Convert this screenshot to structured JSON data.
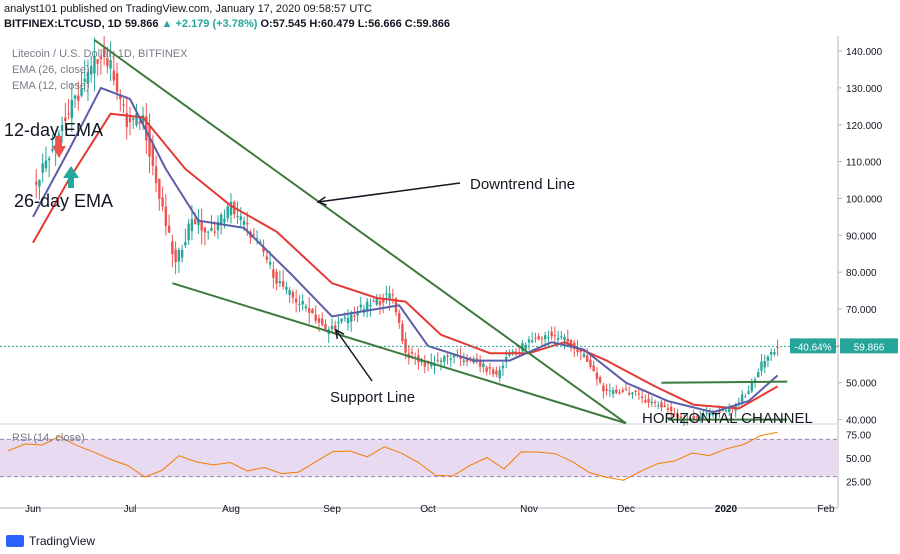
{
  "header": {
    "line1": "analyst101 published on TradingView.com, January 17, 2020 09:58:57 UTC",
    "symbol": "BITFINEX:LTCUSD, 1D",
    "last": "59.866",
    "change": "▲ +2.179 (+3.78%)",
    "ohlc": "O:57.545 H:60.479 L:56.666 C:59.866"
  },
  "chart_legend": {
    "title": "Litecoin / U.S. Dollar, 1D, BITFINEX",
    "ema26": "EMA (26, close)",
    "ema12": "EMA (12, close)",
    "rsi": "RSI (14, close)"
  },
  "annotations": {
    "ema12": "12-day EMA",
    "ema26": "26-day EMA",
    "downtrend": "Downtrend Line",
    "support": "Support Line",
    "channel": "HORIZONTAL CHANNEL"
  },
  "badges": {
    "pct": "-40.64%",
    "price": "59.866"
  },
  "footer": {
    "brand": "TradingView"
  },
  "colors": {
    "up": "#26a69a",
    "down": "#ef5350",
    "ema12": "#5b5ea6",
    "ema26": "#e53935",
    "trendline": "#3d7a3d",
    "rsi": "#f57c00",
    "rsi_band": "#e8daf0",
    "price_line": "#26a69a"
  },
  "chart_data": [
    {
      "type": "candlestick",
      "symbol": "LTCUSD",
      "x_ticks": [
        "Jun",
        "Jul",
        "Aug",
        "Sep",
        "Oct",
        "Nov",
        "Dec",
        "2020",
        "Feb"
      ],
      "y_ticks": [
        "140.000",
        "130.000",
        "120.000",
        "110.000",
        "100.000",
        "90.000",
        "80.000",
        "70.000",
        "60.000",
        "50.000",
        "40.000"
      ],
      "ylim": [
        35,
        143
      ],
      "close_path": [
        {
          "x": "Jun 1",
          "y": 103
        },
        {
          "x": "Jun 10",
          "y": 120
        },
        {
          "x": "Jun 18",
          "y": 133
        },
        {
          "x": "Jun 22",
          "y": 140
        },
        {
          "x": "Jun 26",
          "y": 134
        },
        {
          "x": "Jun 30",
          "y": 120
        },
        {
          "x": "Jul 5",
          "y": 122
        },
        {
          "x": "Jul 10",
          "y": 100
        },
        {
          "x": "Jul 15",
          "y": 82
        },
        {
          "x": "Jul 20",
          "y": 95
        },
        {
          "x": "Jul 25",
          "y": 90
        },
        {
          "x": "Aug 1",
          "y": 98
        },
        {
          "x": "Aug 5",
          "y": 93
        },
        {
          "x": "Aug 10",
          "y": 87
        },
        {
          "x": "Aug 15",
          "y": 78
        },
        {
          "x": "Aug 20",
          "y": 73
        },
        {
          "x": "Aug 25",
          "y": 70
        },
        {
          "x": "Aug 30",
          "y": 64
        },
        {
          "x": "Sep 5",
          "y": 67
        },
        {
          "x": "Sep 10",
          "y": 70
        },
        {
          "x": "Sep 15",
          "y": 72
        },
        {
          "x": "Sep 20",
          "y": 74
        },
        {
          "x": "Sep 24",
          "y": 58
        },
        {
          "x": "Sep 30",
          "y": 55
        },
        {
          "x": "Oct 8",
          "y": 57
        },
        {
          "x": "Oct 15",
          "y": 56
        },
        {
          "x": "Oct 22",
          "y": 52
        },
        {
          "x": "Oct 26",
          "y": 58
        },
        {
          "x": "Nov 1",
          "y": 61
        },
        {
          "x": "Nov 7",
          "y": 63
        },
        {
          "x": "Nov 12",
          "y": 62
        },
        {
          "x": "Nov 18",
          "y": 57
        },
        {
          "x": "Nov 25",
          "y": 47
        },
        {
          "x": "Dec 1",
          "y": 48
        },
        {
          "x": "Dec 8",
          "y": 45
        },
        {
          "x": "Dec 14",
          "y": 43
        },
        {
          "x": "Dec 18",
          "y": 40
        },
        {
          "x": "Dec 24",
          "y": 41
        },
        {
          "x": "Dec 30",
          "y": 42
        },
        {
          "x": "Jan 3",
          "y": 43
        },
        {
          "x": "Jan 8",
          "y": 48
        },
        {
          "x": "Jan 12",
          "y": 55
        },
        {
          "x": "Jan 17",
          "y": 59.866
        }
      ],
      "ema12": [
        {
          "x": "Jun 1",
          "y": 95
        },
        {
          "x": "Jun 12",
          "y": 113
        },
        {
          "x": "Jun 22",
          "y": 130
        },
        {
          "x": "Jul 1",
          "y": 127
        },
        {
          "x": "Jul 12",
          "y": 108
        },
        {
          "x": "Jul 22",
          "y": 94
        },
        {
          "x": "Aug 5",
          "y": 92
        },
        {
          "x": "Aug 20",
          "y": 79
        },
        {
          "x": "Sep 1",
          "y": 68
        },
        {
          "x": "Sep 15",
          "y": 70
        },
        {
          "x": "Sep 22",
          "y": 71
        },
        {
          "x": "Oct 1",
          "y": 60
        },
        {
          "x": "Oct 15",
          "y": 56
        },
        {
          "x": "Oct 26",
          "y": 56
        },
        {
          "x": "Nov 8",
          "y": 61
        },
        {
          "x": "Nov 18",
          "y": 59
        },
        {
          "x": "Dec 1",
          "y": 50
        },
        {
          "x": "Dec 14",
          "y": 45
        },
        {
          "x": "Dec 28",
          "y": 42
        },
        {
          "x": "Jan 8",
          "y": 45
        },
        {
          "x": "Jan 17",
          "y": 52
        }
      ],
      "ema26": [
        {
          "x": "Jun 1",
          "y": 88
        },
        {
          "x": "Jun 12",
          "y": 105
        },
        {
          "x": "Jun 25",
          "y": 123
        },
        {
          "x": "Jul 5",
          "y": 122
        },
        {
          "x": "Jul 18",
          "y": 108
        },
        {
          "x": "Aug 1",
          "y": 98
        },
        {
          "x": "Aug 15",
          "y": 91
        },
        {
          "x": "Sep 1",
          "y": 77
        },
        {
          "x": "Sep 15",
          "y": 73
        },
        {
          "x": "Sep 24",
          "y": 72
        },
        {
          "x": "Oct 5",
          "y": 63
        },
        {
          "x": "Oct 20",
          "y": 58
        },
        {
          "x": "Nov 1",
          "y": 58
        },
        {
          "x": "Nov 12",
          "y": 61
        },
        {
          "x": "Nov 25",
          "y": 56
        },
        {
          "x": "Dec 10",
          "y": 49
        },
        {
          "x": "Dec 22",
          "y": 44
        },
        {
          "x": "Jan 5",
          "y": 43
        },
        {
          "x": "Jan 17",
          "y": 49
        }
      ],
      "last_price": 59.866,
      "change_pct_badge": -40.64
    },
    {
      "type": "line",
      "name": "RSI (14, close)",
      "y_ticks": [
        "75.00",
        "50.00",
        "25.00"
      ],
      "ylim": [
        20,
        80
      ],
      "band": [
        30,
        70
      ],
      "values": [
        58,
        66,
        62,
        71,
        64,
        55,
        49,
        42,
        30,
        38,
        52,
        46,
        40,
        44,
        36,
        41,
        33,
        35,
        48,
        55,
        60,
        52,
        62,
        57,
        44,
        30,
        32,
        42,
        48,
        38,
        55,
        59,
        52,
        46,
        34,
        31,
        29,
        36,
        41,
        44,
        54,
        50,
        58,
        64,
        72,
        78
      ]
    }
  ]
}
